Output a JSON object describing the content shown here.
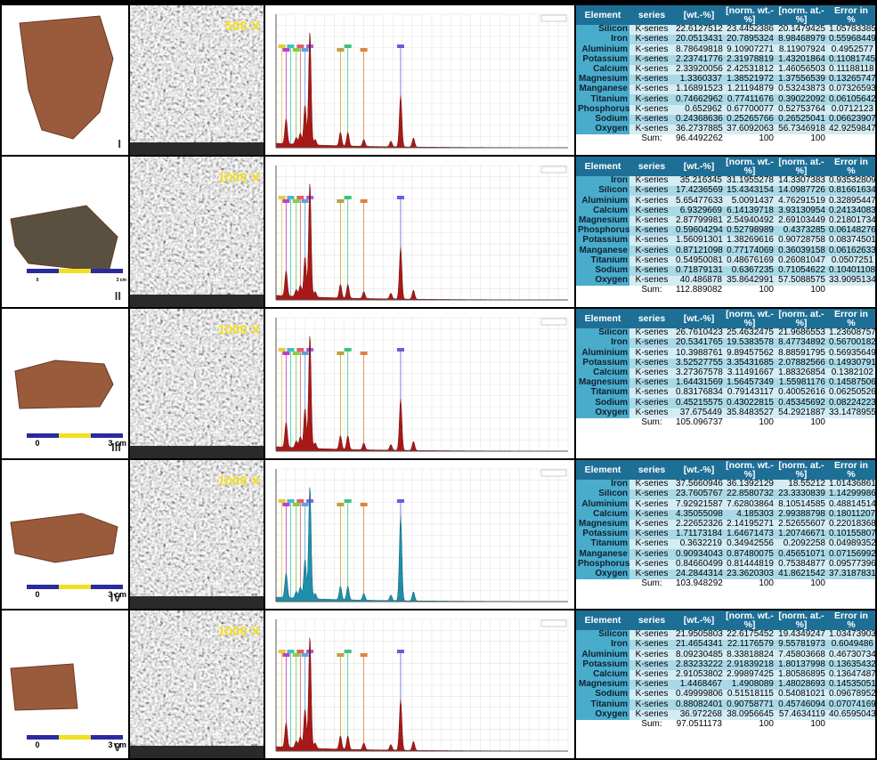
{
  "panels": [
    {
      "label": "I",
      "magnification": "500 X",
      "table": {
        "header": [
          "Element",
          "series",
          "[wt.-%]",
          "[norm. wt.-%]",
          "[norm. at.-%]",
          "Error in %"
        ],
        "rows": [
          [
            "Silicon",
            "K-series",
            "22.6127512",
            "23.4452386",
            "20.1479425",
            "1.05783385"
          ],
          [
            "Iron",
            "K-series",
            "20.0513431",
            "20.7895324",
            "8.98468979",
            "0.55968449"
          ],
          [
            "Aluminium",
            "K-series",
            "8.78649818",
            "9.10907271",
            "8.11907924",
            "0.4952577"
          ],
          [
            "Potassium",
            "K-series",
            "2.23741776",
            "2.31978819",
            "1.43201864",
            "0.11081745"
          ],
          [
            "Calcium",
            "K-series",
            "2.33920056",
            "2.42531812",
            "1.46056503",
            "0.11188118"
          ],
          [
            "Magnesium",
            "K-series",
            "1.3360337",
            "1.38521972",
            "1.37556539",
            "0.13265747"
          ],
          [
            "Manganese",
            "K-series",
            "1.16891523",
            "1.21194879",
            "0.53243873",
            "0.07326593"
          ],
          [
            "Titanium",
            "K-series",
            "0.74662962",
            "0.77411676",
            "0.39022092",
            "0.06105642"
          ],
          [
            "Phosphorus",
            "K-series",
            "0.652962",
            "0.67700077",
            "0.52753764",
            "0.0712123"
          ],
          [
            "Sodium",
            "K-series",
            "0.24368636",
            "0.25265766",
            "0.26525041",
            "0.06623907"
          ],
          [
            "Oxygen",
            "K-series",
            "36.2737885",
            "37.6092063",
            "56.7346918",
            "42.9259847"
          ]
        ],
        "sum": [
          "Sum:",
          "96.4492262",
          "100",
          "100"
        ]
      }
    },
    {
      "label": "II",
      "magnification": "1000 X",
      "scale": [
        "0",
        "3 cm"
      ],
      "table": {
        "header": [
          "Element",
          "series",
          "[wt.-%]",
          "[norm. wt.-%]",
          "[norm. at.-%]",
          "Error in %"
        ],
        "rows": [
          [
            "Iron",
            "K-series",
            "35.216345",
            "31.1955278",
            "14.3307383",
            "0.93532809"
          ],
          [
            "Silicon",
            "K-series",
            "17.4236569",
            "15.4343154",
            "14.0987726",
            "0.81661634"
          ],
          [
            "Aluminium",
            "K-series",
            "5.65477633",
            "5.0091437",
            "4.76291519",
            "0.32895447"
          ],
          [
            "Calcium",
            "K-series",
            "6.9329669",
            "6.14139718",
            "3.93130954",
            "0.24134083"
          ],
          [
            "Magnesium",
            "K-series",
            "2.87799981",
            "2.54940492",
            "2.69103449",
            "0.21801734"
          ],
          [
            "Phosphorus",
            "K-series",
            "0.59604294",
            "0.52798989",
            "0.4373285",
            "0.06148276"
          ],
          [
            "Potassium",
            "K-series",
            "1.56091301",
            "1.38269616",
            "0.90728758",
            "0.08374501"
          ],
          [
            "Manganese",
            "K-series",
            "0.87121098",
            "0.77174069",
            "0.36039158",
            "0.06162633"
          ],
          [
            "Titanium",
            "K-series",
            "0.54950081",
            "0.48676169",
            "0.26081047",
            "0.0507251"
          ],
          [
            "Sodium",
            "K-series",
            "0.71879131",
            "0.6367235",
            "0.71054622",
            "0.10401108"
          ],
          [
            "Oxygen",
            "K-series",
            "40.486878",
            "35.8642991",
            "57.5088575",
            "33.9095134"
          ]
        ],
        "sum": [
          "Sum:",
          "112.889082",
          "100",
          "100"
        ]
      }
    },
    {
      "label": "III",
      "magnification": "1000 X",
      "scale": [
        "0",
        "3 cm"
      ],
      "table": {
        "header": [
          "Element",
          "series",
          "[wt.-%]",
          "[norm. wt.-%]",
          "[norm. at.-%]",
          "Error in %"
        ],
        "rows": [
          [
            "Silicon",
            "K-series",
            "26.7610423",
            "25.4632475",
            "21.9686553",
            "1.23608757"
          ],
          [
            "Iron",
            "K-series",
            "20.5341765",
            "19.5383578",
            "8.47734892",
            "0.56700182"
          ],
          [
            "Aluminium",
            "K-series",
            "10.3988761",
            "9.89457562",
            "8.88591795",
            "0.56935649"
          ],
          [
            "Potassium",
            "K-series",
            "3.52527755",
            "3.35431685",
            "2.07882566",
            "0.14930791"
          ],
          [
            "Calcium",
            "K-series",
            "3.27367578",
            "3.11491667",
            "1.88326854",
            "0.1382102"
          ],
          [
            "Magnesium",
            "K-series",
            "1.64431569",
            "1.56457349",
            "1.55981176",
            "0.14587506"
          ],
          [
            "Titanium",
            "K-series",
            "0.83176834",
            "0.79143117",
            "0.40052616",
            "0.06250526"
          ],
          [
            "Sodium",
            "K-series",
            "0.45215575",
            "0.43022815",
            "0.45345692",
            "0.08224223"
          ],
          [
            "Oxygen",
            "K-series",
            "37.675449",
            "35.8483527",
            "54.2921887",
            "33.1478955"
          ]
        ],
        "sum": [
          "Sum:",
          "105.096737",
          "100",
          "100"
        ]
      }
    },
    {
      "label": "IV",
      "magnification": "1000 X",
      "scale": [
        "0",
        "3 cm"
      ],
      "table": {
        "header": [
          "Element",
          "series",
          "[wt.-%]",
          "[norm. wt.-%]",
          "[norm. at.-%]",
          "Error in %"
        ],
        "rows": [
          [
            "Iron",
            "K-series",
            "37.5660946",
            "36.1392129",
            "18.55212",
            "1.01436861"
          ],
          [
            "Silicon",
            "K-series",
            "23.7605767",
            "22.8580732",
            "23.3330839",
            "1.14299986"
          ],
          [
            "Aluminium",
            "K-series",
            "7.92921587",
            "7.62803864",
            "8.10514585",
            "0.48814514"
          ],
          [
            "Calcium",
            "K-series",
            "4.35055098",
            "4.185303",
            "2.99388798",
            "0.18011207"
          ],
          [
            "Magnesium",
            "K-series",
            "2.22652326",
            "2.14195271",
            "2.52655607",
            "0.22018368"
          ],
          [
            "Potassium",
            "K-series",
            "1.71173184",
            "1.64671473",
            "1.20746671",
            "0.10155807"
          ],
          [
            "Titanium",
            "K-series",
            "0.3632219",
            "0.34942556",
            "0.2092258",
            "0.04989352"
          ],
          [
            "Manganese",
            "K-series",
            "0.90934043",
            "0.87480075",
            "0.45651071",
            "0.07156992"
          ],
          [
            "Phosphorus",
            "K-series",
            "0.84660499",
            "0.81444819",
            "0.75384877",
            "0.09577396"
          ],
          [
            "Oxygen",
            "K-series",
            "24.2844314",
            "23.3620303",
            "41.8621542",
            "37.3187831"
          ]
        ],
        "sum": [
          "Sum:",
          "103.948292",
          "100",
          "100"
        ]
      }
    },
    {
      "label": "V",
      "magnification": "1000 X",
      "scale": [
        "0",
        "3 cm"
      ],
      "table": {
        "header": [
          "Element",
          "series",
          "[wt.-%]",
          "[norm. wt.-%]",
          "[norm. at.-%]",
          "Error in %"
        ],
        "rows": [
          [
            "Silicon",
            "K-series",
            "21.9505803",
            "22.6175452",
            "19.4349247",
            "1.03473903"
          ],
          [
            "Iron",
            "K-series",
            "21.4654341",
            "22.1176579",
            "9.55781973",
            "0.6049486"
          ],
          [
            "Aluminium",
            "K-series",
            "8.09230485",
            "8.33818824",
            "7.45803668",
            "0.46730734"
          ],
          [
            "Potassium",
            "K-series",
            "2.83233222",
            "2.91839218",
            "1.80137998",
            "0.13635432"
          ],
          [
            "Calcium",
            "K-series",
            "2.91053802",
            "2.99897425",
            "1.80586895",
            "0.13647487"
          ],
          [
            "Magnesium",
            "K-series",
            "1.4468467",
            "1.4908089",
            "1.48028693",
            "0.14535051"
          ],
          [
            "Sodium",
            "K-series",
            "0.49999806",
            "0.51518115",
            "0.54081021",
            "0.09678952"
          ],
          [
            "Titanium",
            "K-series",
            "0.88082401",
            "0.90758771",
            "0.45746094",
            "0.07074169"
          ],
          [
            "Oxygen",
            "K-series",
            "36.972268",
            "38.0956645",
            "57.4634119",
            "40.6595043"
          ]
        ],
        "sum": [
          "Sum:",
          "97.0511173",
          "100",
          "100"
        ]
      }
    }
  ]
}
